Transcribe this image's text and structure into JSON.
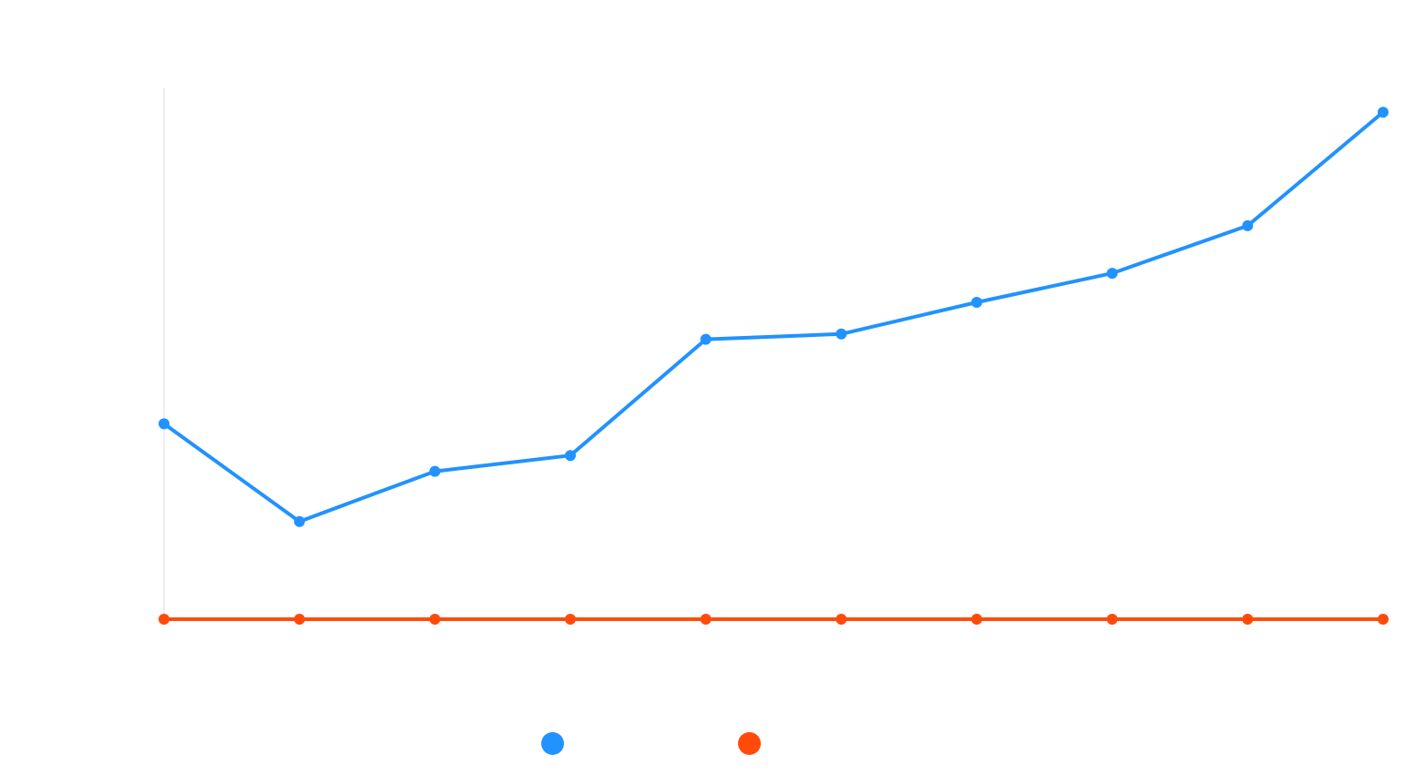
{
  "chart_data": {
    "type": "line",
    "x": [
      1,
      2,
      3,
      4,
      5,
      6,
      7,
      8,
      9,
      10
    ],
    "ylim": [
      0,
      100
    ],
    "grid": false,
    "legend_position": "bottom-center",
    "series": [
      {
        "color": "#2192ff",
        "values": [
          37,
          18.5,
          28,
          31,
          53,
          54,
          60,
          65.5,
          74.5,
          96
        ]
      },
      {
        "color": "#ff4b0a",
        "values": [
          0,
          0,
          0,
          0,
          0,
          0,
          0,
          0,
          0,
          0
        ]
      }
    ]
  }
}
